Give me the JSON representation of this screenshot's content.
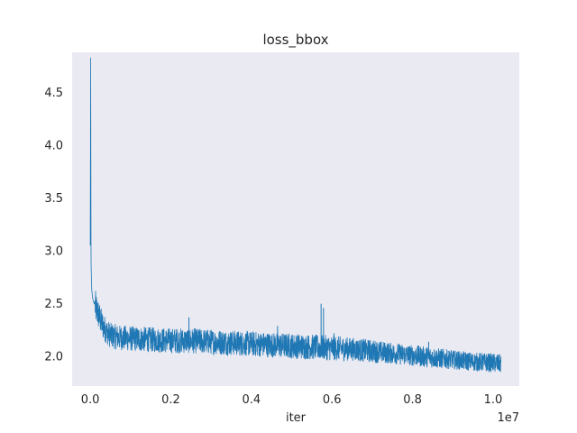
{
  "chart_data": {
    "type": "line",
    "title": "loss_bbox",
    "xlabel": "iter",
    "ylabel": "",
    "x_offset_label": "1e7",
    "xlim": [
      -450000,
      10650000
    ],
    "ylim": [
      1.72,
      4.88
    ],
    "x_ticks": [
      0,
      2000000,
      4000000,
      6000000,
      8000000,
      10000000
    ],
    "x_tick_labels": [
      "0.0",
      "0.2",
      "0.4",
      "0.6",
      "0.8",
      "1.0"
    ],
    "y_ticks": [
      2.0,
      2.5,
      3.0,
      3.5,
      4.0,
      4.5
    ],
    "y_tick_labels": [
      "2.0",
      "2.5",
      "3.0",
      "3.5",
      "4.0",
      "4.5"
    ],
    "grid": false,
    "style": {
      "background": "#eaeaf2",
      "line_color": "#1f77b4"
    },
    "series": [
      {
        "x": [
          0,
          10000,
          20000,
          30000,
          40000,
          60000,
          80000,
          100000,
          150000,
          200000,
          300000,
          400000,
          500000,
          700000,
          1000000,
          1500000,
          2000000,
          2500000,
          3000000,
          3500000,
          4000000,
          4500000,
          5000000,
          5500000,
          6000000,
          6500000,
          7000000,
          7500000,
          8000000,
          8500000,
          9000000,
          9500000,
          10000000,
          10200000
        ],
        "y": [
          3.05,
          4.83,
          2.9,
          2.7,
          2.62,
          2.55,
          2.52,
          2.5,
          2.45,
          2.4,
          2.3,
          2.24,
          2.2,
          2.18,
          2.17,
          2.16,
          2.15,
          2.15,
          2.14,
          2.13,
          2.12,
          2.11,
          2.1,
          2.09,
          2.08,
          2.07,
          2.05,
          2.03,
          2.01,
          1.99,
          1.97,
          1.95,
          1.94,
          1.93
        ],
        "band": [
          0.06,
          0.08,
          0.25,
          0.22,
          0.2,
          0.18,
          0.17,
          0.16,
          0.15,
          0.14,
          0.13,
          0.12,
          0.12,
          0.12,
          0.12,
          0.12,
          0.12,
          0.12,
          0.12,
          0.12,
          0.12,
          0.12,
          0.12,
          0.12,
          0.12,
          0.11,
          0.11,
          0.1,
          0.1,
          0.1,
          0.09,
          0.09,
          0.09,
          0.09
        ],
        "spikes": [
          {
            "x": 2450000,
            "y": 2.37
          },
          {
            "x": 4650000,
            "y": 2.29
          },
          {
            "x": 5730000,
            "y": 2.5
          },
          {
            "x": 5790000,
            "y": 2.46
          },
          {
            "x": 6050000,
            "y": 2.22
          },
          {
            "x": 8400000,
            "y": 2.14
          }
        ]
      }
    ]
  }
}
